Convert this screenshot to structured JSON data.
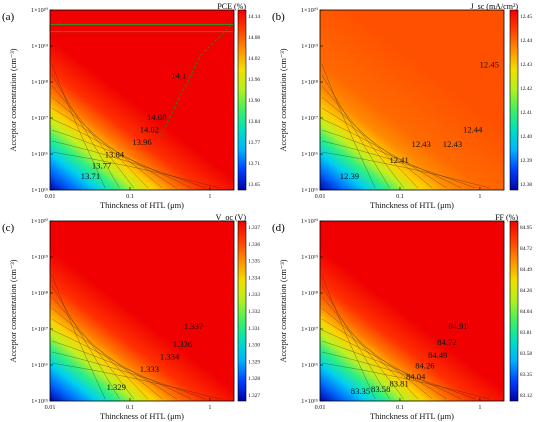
{
  "chart_data": [
    {
      "type": "heatmap",
      "panel_label": "(a)",
      "xlabel": "Thinckness of HTL (μm)",
      "ylabel": "Acceptor concentration (cm⁻³)",
      "x_scale": "log",
      "y_scale": "log",
      "xlim_um": [
        0.01,
        2
      ],
      "ylim_cm3": [
        1000000000000000.0,
        1e+20
      ],
      "x_ticks": [
        "0.01",
        "0.1",
        "1"
      ],
      "y_ticks": [
        "1×10¹⁵",
        "1×10¹⁶",
        "1×10¹⁷",
        "1×10¹⁸",
        "1×10¹⁹",
        "1×10²⁰"
      ],
      "colorbar_title": "PCE (%)",
      "colorbar_range": [
        13.65,
        14.14
      ],
      "colorbar_ticks": [
        "14.14",
        "14.08",
        "14.02",
        "13.96",
        "13.90",
        "13.84",
        "13.77",
        "13.71",
        "13.65"
      ],
      "contour_labels": [
        "14.1",
        "14.08",
        "14.02",
        "13.96",
        "13.84",
        "13.77",
        "13.71"
      ],
      "optimum_marker": {
        "x_um": 1.8,
        "y_cm3": 2e+19
      },
      "values_by_contour": [
        13.71,
        13.77,
        13.84,
        13.96,
        14.02,
        14.08,
        14.1
      ]
    },
    {
      "type": "heatmap",
      "panel_label": "(b)",
      "xlabel": "Thinckness of HTL (μm)",
      "ylabel": "Acceptor concentration (cm⁻³)",
      "x_scale": "log",
      "y_scale": "log",
      "x_ticks": [
        "0.01",
        "0.1",
        "1"
      ],
      "y_ticks": [
        "1×10¹⁵",
        "1×10¹⁶",
        "1×10¹⁷",
        "1×10¹⁸",
        "1×10¹⁹",
        "1×10²⁰"
      ],
      "colorbar_title": "J_sc (mA/cm²)",
      "colorbar_range": [
        12.38,
        12.45
      ],
      "colorbar_ticks": [
        "12.45",
        "12.44",
        "12.43",
        "12.42",
        "12.41",
        "12.40",
        "12.39",
        "12.38"
      ],
      "contour_labels": [
        "12.45",
        "12.44",
        "12.43",
        "12.43",
        "12.41",
        "12.39"
      ]
    },
    {
      "type": "heatmap",
      "panel_label": "(c)",
      "xlabel": "Thinckness of HTL (μm)",
      "ylabel": "Acceptor concentration (cm⁻³)",
      "x_scale": "log",
      "y_scale": "log",
      "x_ticks": [
        "0.01",
        "0.1",
        "1"
      ],
      "y_ticks": [
        "1×10¹⁵",
        "1×10¹⁶",
        "1×10¹⁷",
        "1×10¹⁸",
        "1×10¹⁹",
        "1×10²⁰"
      ],
      "colorbar_title": "V_oc (V)",
      "colorbar_range": [
        1.327,
        1.337
      ],
      "colorbar_ticks": [
        "1.337",
        "1.336",
        "1.335",
        "1.334",
        "1.333",
        "1.332",
        "1.331",
        "1.330",
        "1.329",
        "1.328",
        "1.327"
      ],
      "contour_labels": [
        "1.337",
        "1.336",
        "1.334",
        "1.333",
        "1.329"
      ]
    },
    {
      "type": "heatmap",
      "panel_label": "(d)",
      "xlabel": "Thinckness of HTL (μm)",
      "ylabel": "Acceptor concentration (cm⁻³)",
      "x_scale": "log",
      "y_scale": "log",
      "x_ticks": [
        "0.01",
        "0.1",
        "1"
      ],
      "y_ticks": [
        "1×10¹⁵",
        "1×10¹⁶",
        "1×10¹⁷",
        "1×10¹⁸",
        "1×10¹⁹",
        "1×10²⁰"
      ],
      "colorbar_title": "FF (%)",
      "colorbar_range": [
        83.12,
        84.95
      ],
      "colorbar_ticks": [
        "84.95",
        "84.72",
        "84.49",
        "84.26",
        "84.04",
        "83.81",
        "83.58",
        "83.35",
        "83.12"
      ],
      "contour_labels": [
        "84.91",
        "84.72",
        "84.49",
        "84.26",
        "84.04",
        "83.81",
        "83.58",
        "83.35"
      ]
    }
  ]
}
